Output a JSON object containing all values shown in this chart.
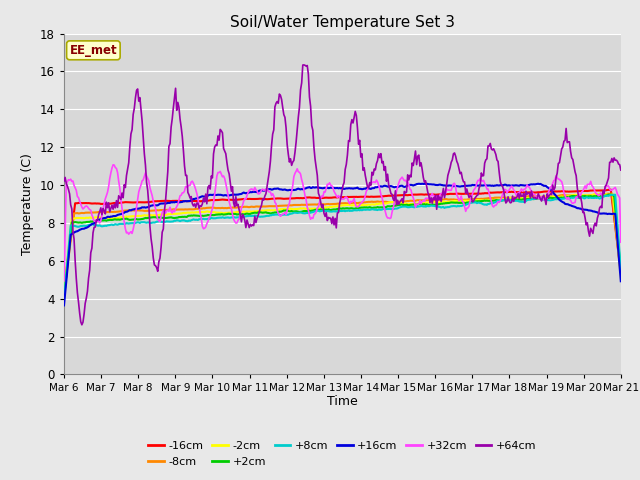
{
  "title": "Soil/Water Temperature Set 3",
  "xlabel": "Time",
  "ylabel": "Temperature (C)",
  "ylim": [
    0,
    18
  ],
  "yticks": [
    0,
    2,
    4,
    6,
    8,
    10,
    12,
    14,
    16,
    18
  ],
  "date_labels": [
    "Mar 6",
    "Mar 7",
    "Mar 8",
    "Mar 9",
    "Mar 10",
    "Mar 11",
    "Mar 12",
    "Mar 13",
    "Mar 14",
    "Mar 15",
    "Mar 16",
    "Mar 17",
    "Mar 18",
    "Mar 19",
    "Mar 20",
    "Mar 21"
  ],
  "series_labels": [
    "-16cm",
    "-8cm",
    "-2cm",
    "+2cm",
    "+8cm",
    "+16cm",
    "+32cm",
    "+64cm"
  ],
  "series_colors": [
    "#ff0000",
    "#ff8800",
    "#ffff00",
    "#00cc00",
    "#00cccc",
    "#0000dd",
    "#ff44ff",
    "#9900aa"
  ],
  "legend_label": "EE_met",
  "bg_color": "#e8e8e8",
  "plot_bg_color": "#d8d8d8",
  "grid_color": "#ffffff",
  "n_points": 500
}
